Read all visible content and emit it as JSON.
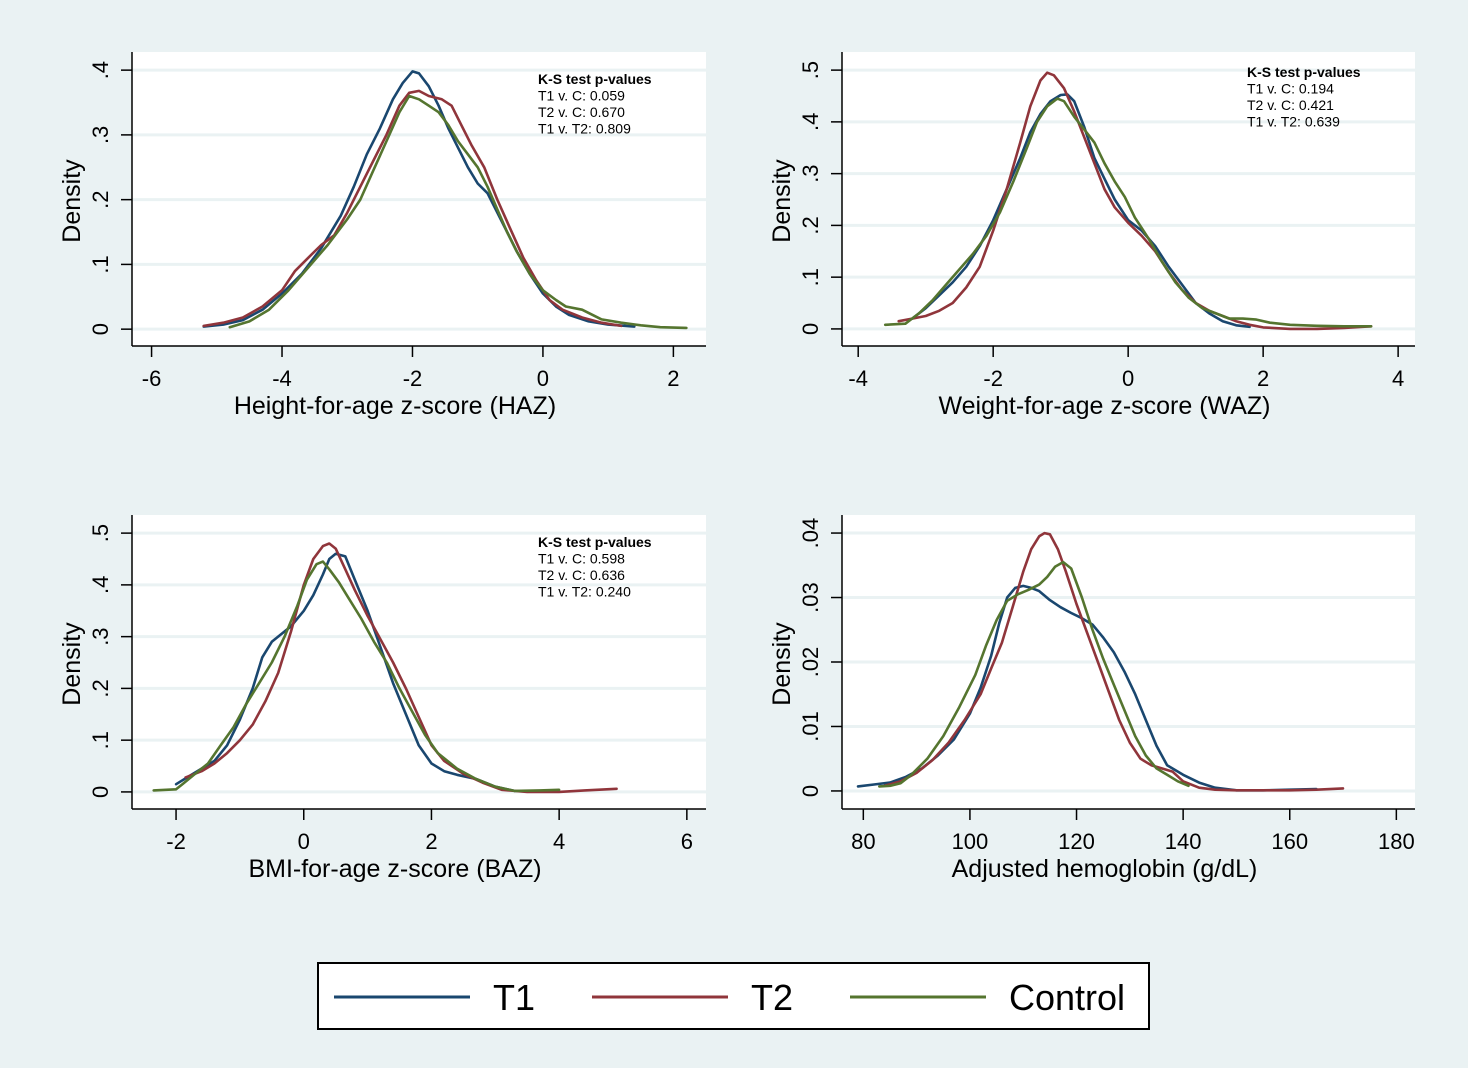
{
  "colors": {
    "background": "#eaf2f3",
    "plot_bg": "#ffffff",
    "grid": "#eaf2f3",
    "T1": "#1a476f",
    "T2": "#90353b",
    "Control": "#55752f"
  },
  "legend": {
    "items": [
      {
        "label": "T1",
        "series": "T1"
      },
      {
        "label": "T2",
        "series": "T2"
      },
      {
        "label": "Control",
        "series": "Control"
      }
    ]
  },
  "chart_data": [
    {
      "type": "line",
      "id": "haz",
      "xlabel": "Height-for-age z-score (HAZ)",
      "ylabel": "Density",
      "xlim": [
        -6.3,
        2.5
      ],
      "ylim": [
        -0.026,
        0.428
      ],
      "xticks": [
        -6,
        -4,
        -2,
        0,
        2
      ],
      "xtick_labels": [
        "-6",
        "-4",
        "-2",
        "0",
        "2"
      ],
      "yticks": [
        0,
        0.1,
        0.2,
        0.3,
        0.4
      ],
      "ytick_labels": [
        "0",
        ".1",
        ".2",
        ".3",
        ".4"
      ],
      "grid": true,
      "annotation": {
        "title": "K-S test p-values",
        "lines": [
          "T1 v. C: 0.059",
          "T2 v. C: 0.670",
          "T1 v. T2: 0.809"
        ],
        "position": "top-right"
      },
      "series": [
        {
          "name": "T1",
          "x": [
            -5.2,
            -4.9,
            -4.6,
            -4.3,
            -4.0,
            -3.7,
            -3.4,
            -3.1,
            -2.9,
            -2.7,
            -2.5,
            -2.3,
            -2.15,
            -2.0,
            -1.9,
            -1.75,
            -1.6,
            -1.45,
            -1.3,
            -1.15,
            -1.0,
            -0.85,
            -0.7,
            -0.55,
            -0.4,
            -0.2,
            0.0,
            0.2,
            0.4,
            0.7,
            1.0,
            1.4
          ],
          "y": [
            0.004,
            0.007,
            0.014,
            0.03,
            0.055,
            0.085,
            0.125,
            0.175,
            0.22,
            0.27,
            0.31,
            0.355,
            0.38,
            0.398,
            0.395,
            0.375,
            0.345,
            0.31,
            0.28,
            0.25,
            0.225,
            0.21,
            0.18,
            0.15,
            0.12,
            0.085,
            0.055,
            0.035,
            0.022,
            0.012,
            0.007,
            0.004
          ]
        },
        {
          "name": "T2",
          "x": [
            -5.2,
            -4.9,
            -4.6,
            -4.3,
            -4.0,
            -3.8,
            -3.6,
            -3.4,
            -3.2,
            -3.0,
            -2.8,
            -2.6,
            -2.4,
            -2.2,
            -2.05,
            -1.9,
            -1.75,
            -1.55,
            -1.4,
            -1.25,
            -1.1,
            -0.9,
            -0.7,
            -0.5,
            -0.3,
            -0.1,
            0.1,
            0.3,
            0.6,
            0.9,
            1.2
          ],
          "y": [
            0.005,
            0.01,
            0.018,
            0.035,
            0.06,
            0.09,
            0.11,
            0.13,
            0.145,
            0.18,
            0.22,
            0.26,
            0.3,
            0.345,
            0.365,
            0.368,
            0.36,
            0.355,
            0.345,
            0.315,
            0.285,
            0.25,
            0.2,
            0.155,
            0.11,
            0.075,
            0.045,
            0.03,
            0.018,
            0.01,
            0.005
          ]
        },
        {
          "name": "Control",
          "x": [
            -4.8,
            -4.5,
            -4.2,
            -3.9,
            -3.6,
            -3.3,
            -3.0,
            -2.8,
            -2.6,
            -2.4,
            -2.2,
            -2.05,
            -1.9,
            -1.75,
            -1.6,
            -1.45,
            -1.3,
            -1.15,
            -1.0,
            -0.85,
            -0.7,
            -0.55,
            -0.4,
            -0.2,
            0.0,
            0.2,
            0.35,
            0.6,
            0.9,
            1.2,
            1.5,
            1.8,
            2.2
          ],
          "y": [
            0.003,
            0.012,
            0.03,
            0.06,
            0.095,
            0.13,
            0.17,
            0.2,
            0.245,
            0.29,
            0.335,
            0.36,
            0.355,
            0.345,
            0.335,
            0.315,
            0.29,
            0.27,
            0.25,
            0.22,
            0.185,
            0.15,
            0.12,
            0.085,
            0.06,
            0.045,
            0.035,
            0.03,
            0.015,
            0.01,
            0.006,
            0.003,
            0.002
          ]
        }
      ]
    },
    {
      "type": "line",
      "id": "waz",
      "xlabel": "Weight-for-age z-score (WAZ)",
      "ylabel": "Density",
      "xlim": [
        -4.24,
        4.25
      ],
      "ylim": [
        -0.033,
        0.535
      ],
      "xticks": [
        -4,
        -2,
        0,
        2,
        4
      ],
      "xtick_labels": [
        "-4",
        "-2",
        "0",
        "2",
        "4"
      ],
      "yticks": [
        0,
        0.1,
        0.2,
        0.3,
        0.4,
        0.5
      ],
      "ytick_labels": [
        "0",
        ".1",
        ".2",
        ".3",
        ".4",
        ".5"
      ],
      "grid": true,
      "annotation": {
        "title": "K-S test p-values",
        "lines": [
          "T1 v. C: 0.194",
          "T2 v. C: 0.421",
          "T1 v. T2: 0.639"
        ],
        "position": "top-right"
      },
      "series": [
        {
          "name": "T1",
          "x": [
            -3.2,
            -3.0,
            -2.8,
            -2.6,
            -2.4,
            -2.2,
            -2.0,
            -1.8,
            -1.6,
            -1.45,
            -1.3,
            -1.15,
            -1.0,
            -0.9,
            -0.8,
            -0.65,
            -0.5,
            -0.35,
            -0.2,
            0.0,
            0.2,
            0.4,
            0.6,
            0.8,
            1.0,
            1.2,
            1.4,
            1.6,
            1.8
          ],
          "y": [
            0.02,
            0.04,
            0.065,
            0.09,
            0.12,
            0.16,
            0.21,
            0.27,
            0.33,
            0.38,
            0.415,
            0.44,
            0.452,
            0.453,
            0.44,
            0.39,
            0.33,
            0.29,
            0.25,
            0.21,
            0.19,
            0.16,
            0.12,
            0.085,
            0.05,
            0.03,
            0.015,
            0.007,
            0.004
          ]
        },
        {
          "name": "T2",
          "x": [
            -3.4,
            -3.2,
            -3.0,
            -2.8,
            -2.6,
            -2.4,
            -2.2,
            -2.0,
            -1.8,
            -1.6,
            -1.45,
            -1.3,
            -1.2,
            -1.1,
            -0.95,
            -0.8,
            -0.65,
            -0.5,
            -0.35,
            -0.2,
            0.0,
            0.2,
            0.4,
            0.6,
            0.8,
            1.0,
            1.2,
            1.4,
            1.6,
            1.8,
            2.0,
            2.4,
            2.8,
            3.2,
            3.6
          ],
          "y": [
            0.015,
            0.02,
            0.025,
            0.035,
            0.05,
            0.08,
            0.12,
            0.19,
            0.27,
            0.36,
            0.43,
            0.48,
            0.495,
            0.49,
            0.465,
            0.42,
            0.37,
            0.32,
            0.27,
            0.235,
            0.205,
            0.18,
            0.15,
            0.11,
            0.075,
            0.05,
            0.035,
            0.025,
            0.015,
            0.008,
            0.003,
            0.0,
            0.0,
            0.002,
            0.005
          ]
        },
        {
          "name": "Control",
          "x": [
            -3.6,
            -3.3,
            -3.1,
            -2.9,
            -2.7,
            -2.5,
            -2.3,
            -2.1,
            -1.9,
            -1.7,
            -1.5,
            -1.35,
            -1.2,
            -1.05,
            -0.95,
            -0.8,
            -0.65,
            -0.5,
            -0.35,
            -0.2,
            -0.05,
            0.1,
            0.3,
            0.5,
            0.7,
            0.9,
            1.1,
            1.3,
            1.5,
            1.7,
            1.9,
            2.1,
            2.4,
            2.8,
            3.2,
            3.6
          ],
          "y": [
            0.008,
            0.01,
            0.03,
            0.055,
            0.085,
            0.115,
            0.145,
            0.18,
            0.225,
            0.285,
            0.35,
            0.4,
            0.43,
            0.445,
            0.44,
            0.41,
            0.385,
            0.36,
            0.32,
            0.285,
            0.255,
            0.215,
            0.175,
            0.13,
            0.09,
            0.06,
            0.04,
            0.03,
            0.02,
            0.02,
            0.018,
            0.012,
            0.008,
            0.006,
            0.005,
            0.005
          ]
        }
      ]
    },
    {
      "type": "line",
      "id": "baz",
      "xlabel": "BMI-for-age z-score (BAZ)",
      "ylabel": "Density",
      "xlim": [
        -2.69,
        6.3
      ],
      "ylim": [
        -0.033,
        0.535
      ],
      "xticks": [
        -2,
        0,
        2,
        4,
        6
      ],
      "xtick_labels": [
        "-2",
        "0",
        "2",
        "4",
        "6"
      ],
      "yticks": [
        0,
        0.1,
        0.2,
        0.3,
        0.4,
        0.5
      ],
      "ytick_labels": [
        "0",
        ".1",
        ".2",
        ".3",
        ".4",
        ".5"
      ],
      "grid": true,
      "annotation": {
        "title": "K-S test p-values",
        "lines": [
          "T1 v. C: 0.598",
          "T2 v. C: 0.636",
          "T1 v. T2: 0.240"
        ],
        "position": "top-right"
      },
      "series": [
        {
          "name": "T1",
          "x": [
            -2.0,
            -1.8,
            -1.6,
            -1.4,
            -1.2,
            -1.0,
            -0.8,
            -0.65,
            -0.5,
            -0.35,
            -0.2,
            0.0,
            0.15,
            0.3,
            0.4,
            0.5,
            0.65,
            0.8,
            1.0,
            1.2,
            1.4,
            1.6,
            1.8,
            2.0,
            2.2,
            2.4,
            2.7,
            3.0,
            3.3
          ],
          "y": [
            0.015,
            0.03,
            0.045,
            0.06,
            0.09,
            0.14,
            0.2,
            0.26,
            0.29,
            0.305,
            0.32,
            0.35,
            0.38,
            0.42,
            0.45,
            0.46,
            0.455,
            0.41,
            0.35,
            0.28,
            0.21,
            0.15,
            0.09,
            0.055,
            0.04,
            0.033,
            0.025,
            0.01,
            0.002
          ]
        },
        {
          "name": "T2",
          "x": [
            -1.85,
            -1.6,
            -1.4,
            -1.2,
            -1.0,
            -0.8,
            -0.6,
            -0.4,
            -0.2,
            0.0,
            0.15,
            0.3,
            0.4,
            0.5,
            0.65,
            0.8,
            1.0,
            1.2,
            1.4,
            1.6,
            1.8,
            2.0,
            2.2,
            2.5,
            2.8,
            3.1,
            3.5,
            4.0,
            4.4,
            4.9
          ],
          "y": [
            0.028,
            0.04,
            0.055,
            0.075,
            0.1,
            0.13,
            0.175,
            0.23,
            0.31,
            0.4,
            0.45,
            0.475,
            0.48,
            0.47,
            0.43,
            0.39,
            0.34,
            0.295,
            0.25,
            0.2,
            0.145,
            0.09,
            0.06,
            0.035,
            0.018,
            0.004,
            0.0,
            0.0,
            0.003,
            0.006
          ]
        },
        {
          "name": "Control",
          "x": [
            -2.35,
            -2.0,
            -1.9,
            -1.7,
            -1.5,
            -1.3,
            -1.1,
            -0.9,
            -0.7,
            -0.5,
            -0.3,
            -0.1,
            0.05,
            0.2,
            0.3,
            0.4,
            0.55,
            0.7,
            0.9,
            1.1,
            1.3,
            1.5,
            1.7,
            1.9,
            2.1,
            2.4,
            2.7,
            3.0,
            3.3,
            3.7,
            4.0
          ],
          "y": [
            0.003,
            0.005,
            0.015,
            0.035,
            0.055,
            0.09,
            0.125,
            0.17,
            0.21,
            0.25,
            0.3,
            0.36,
            0.41,
            0.44,
            0.445,
            0.43,
            0.405,
            0.375,
            0.335,
            0.29,
            0.25,
            0.2,
            0.155,
            0.11,
            0.075,
            0.045,
            0.025,
            0.01,
            0.002,
            0.003,
            0.004
          ]
        }
      ]
    },
    {
      "type": "line",
      "id": "hemoglobin",
      "xlabel": "Adjusted hemoglobin (g/dL)",
      "ylabel": "Density",
      "xlim": [
        76,
        183.5
      ],
      "ylim": [
        -0.0028,
        0.0428
      ],
      "xticks": [
        80,
        100,
        120,
        140,
        160,
        180
      ],
      "xtick_labels": [
        "80",
        "100",
        "120",
        "140",
        "160",
        "180"
      ],
      "yticks": [
        0,
        0.01,
        0.02,
        0.03,
        0.04
      ],
      "ytick_labels": [
        "0",
        ".01",
        ".02",
        ".03",
        ".04"
      ],
      "grid": true,
      "series": [
        {
          "name": "T1",
          "x": [
            79,
            82,
            85,
            88,
            91,
            94,
            97,
            100,
            102,
            104,
            105.5,
            107,
            108.5,
            110,
            111.5,
            113,
            115,
            117,
            119,
            121,
            123,
            125,
            127,
            129,
            131,
            133,
            135,
            137,
            140,
            143,
            146,
            150,
            155,
            160,
            165
          ],
          "y": [
            0.0007,
            0.001,
            0.0013,
            0.0022,
            0.0035,
            0.0055,
            0.008,
            0.012,
            0.016,
            0.021,
            0.026,
            0.03,
            0.0315,
            0.0318,
            0.0315,
            0.031,
            0.0296,
            0.0285,
            0.0276,
            0.0268,
            0.0258,
            0.0238,
            0.0215,
            0.0185,
            0.015,
            0.011,
            0.007,
            0.004,
            0.0025,
            0.0013,
            0.0005,
            0.0001,
            0.0001,
            0.0002,
            0.0003
          ]
        },
        {
          "name": "T2",
          "x": [
            84,
            87,
            90,
            93,
            96,
            99,
            102,
            104,
            106,
            108,
            110,
            111.5,
            113,
            114,
            115,
            116.5,
            118,
            120,
            122,
            124,
            126,
            128,
            130,
            132,
            134,
            136,
            138,
            140,
            143,
            146,
            150,
            155,
            160,
            165,
            170
          ],
          "y": [
            0.0008,
            0.0015,
            0.0028,
            0.0048,
            0.0075,
            0.011,
            0.015,
            0.019,
            0.023,
            0.0285,
            0.034,
            0.0375,
            0.0395,
            0.04,
            0.0398,
            0.0375,
            0.034,
            0.029,
            0.0245,
            0.02,
            0.0155,
            0.011,
            0.0075,
            0.005,
            0.004,
            0.0035,
            0.003,
            0.0015,
            0.0005,
            0.0002,
            0.0001,
            0.0001,
            0.0001,
            0.0002,
            0.0004
          ]
        },
        {
          "name": "Control",
          "x": [
            83,
            85,
            87,
            89,
            92,
            95,
            98,
            101,
            103,
            105,
            107,
            109,
            111,
            113,
            114.5,
            116,
            117.5,
            119,
            121,
            123,
            125,
            127,
            129,
            131,
            133,
            135,
            137,
            139,
            141
          ],
          "y": [
            0.0007,
            0.0008,
            0.0012,
            0.0025,
            0.005,
            0.0085,
            0.013,
            0.018,
            0.0225,
            0.0265,
            0.0295,
            0.0305,
            0.0312,
            0.032,
            0.0332,
            0.0348,
            0.0355,
            0.0345,
            0.03,
            0.025,
            0.0205,
            0.0165,
            0.0125,
            0.0085,
            0.0055,
            0.0035,
            0.0025,
            0.0015,
            0.0008
          ]
        }
      ]
    }
  ]
}
